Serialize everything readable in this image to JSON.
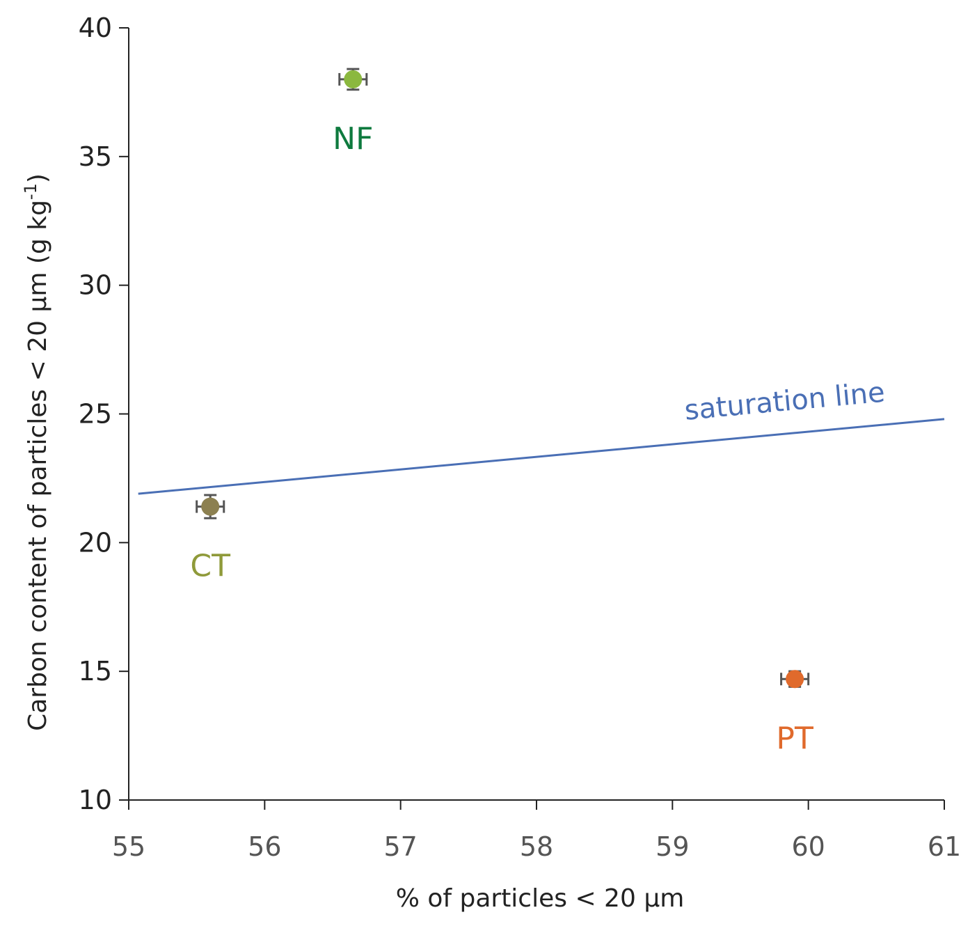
{
  "chart_data": {
    "type": "scatter",
    "title": "",
    "xlabel": "% of particles < 20 µm",
    "ylabel": {
      "prefix": "Carbon content of particles < 20 µm (g kg",
      "superscript": "-1",
      "suffix": ")"
    },
    "xlim": [
      55,
      61
    ],
    "ylim": [
      10,
      40
    ],
    "xticks": [
      "55",
      "56",
      "57",
      "58",
      "59",
      "60",
      "61"
    ],
    "yticks": [
      "10",
      "15",
      "20",
      "25",
      "30",
      "35",
      "40"
    ],
    "grid": false,
    "points": [
      {
        "name": "NF",
        "x": 56.65,
        "y": 38.0,
        "x_err": 0.1,
        "y_err": 0.4,
        "color": "#8BB83F",
        "label_color": "#0E7A3E"
      },
      {
        "name": "CT",
        "x": 55.6,
        "y": 21.4,
        "x_err": 0.1,
        "y_err": 0.45,
        "color": "#8C8050",
        "label_color": "#8F9A3A"
      },
      {
        "name": "PT",
        "x": 59.9,
        "y": 14.7,
        "x_err": 0.1,
        "y_err": 0.3,
        "color": "#E06A2C",
        "label_color": "#E06A2C"
      }
    ],
    "saturation_line": {
      "label": "saturation line",
      "x": [
        55.07,
        61.0
      ],
      "y": [
        21.9,
        24.8
      ],
      "color": "#4A6FB5"
    }
  }
}
